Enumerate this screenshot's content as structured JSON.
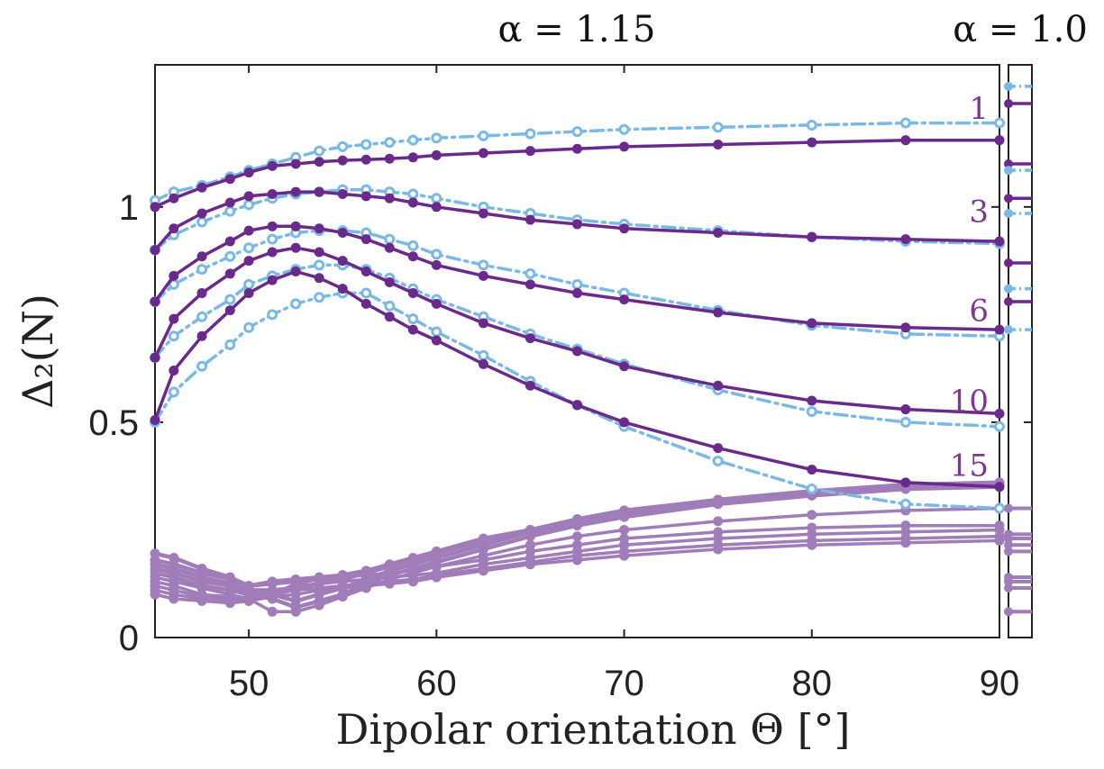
{
  "chart_data": {
    "type": "line",
    "xlabel": "Dipolar orientation Θ [°]",
    "ylabel": "Δ₂(N)",
    "xlim": [
      45,
      90
    ],
    "ylim": [
      0,
      1.33
    ],
    "xticks": [
      "50",
      "60",
      "70",
      "80",
      "90"
    ],
    "yticks": [
      "0",
      "0.5",
      "1"
    ],
    "panel_titles": [
      "α = 1.15",
      "α = 1.0"
    ],
    "n_labels": [
      {
        "text": "1",
        "y": 1.23
      },
      {
        "text": "3",
        "y": 0.99
      },
      {
        "text": "6",
        "y": 0.76
      },
      {
        "text": "10",
        "y": 0.55
      },
      {
        "text": "15",
        "y": 0.4
      }
    ],
    "colors": {
      "dark_purple": "#6a2a8c",
      "light_blue": "#7ab8e6",
      "light_purple": "#a07db8"
    },
    "x": [
      45,
      46,
      47.5,
      49,
      50,
      51.25,
      52.5,
      53.75,
      55,
      56.25,
      57.5,
      58.75,
      60,
      62.5,
      65,
      67.5,
      70,
      75,
      80,
      85,
      90
    ],
    "series": [
      {
        "label": "1",
        "style": "solid",
        "color": "dark_purple",
        "values": [
          1.0,
          1.02,
          1.045,
          1.065,
          1.08,
          1.095,
          1.1,
          1.105,
          1.108,
          1.11,
          1.112,
          1.115,
          1.12,
          1.125,
          1.13,
          1.135,
          1.14,
          1.145,
          1.15,
          1.155,
          1.155
        ]
      },
      {
        "label": "1",
        "style": "dashdot",
        "color": "light_blue",
        "values": [
          1.015,
          1.035,
          1.05,
          1.07,
          1.085,
          1.1,
          1.115,
          1.13,
          1.14,
          1.145,
          1.15,
          1.155,
          1.16,
          1.165,
          1.17,
          1.175,
          1.18,
          1.185,
          1.19,
          1.195,
          1.195
        ]
      },
      {
        "label": "3",
        "style": "solid",
        "color": "dark_purple",
        "values": [
          0.9,
          0.95,
          0.985,
          1.01,
          1.025,
          1.03,
          1.035,
          1.035,
          1.03,
          1.025,
          1.02,
          1.01,
          1.0,
          0.985,
          0.97,
          0.96,
          0.95,
          0.94,
          0.93,
          0.925,
          0.92
        ]
      },
      {
        "label": "3",
        "style": "dashdot",
        "color": "light_blue",
        "values": [
          0.9,
          0.935,
          0.965,
          0.99,
          1.005,
          1.02,
          1.03,
          1.035,
          1.04,
          1.04,
          1.035,
          1.03,
          1.02,
          1.0,
          0.985,
          0.97,
          0.96,
          0.945,
          0.93,
          0.92,
          0.915
        ]
      },
      {
        "label": "6",
        "style": "solid",
        "color": "dark_purple",
        "values": [
          0.78,
          0.84,
          0.885,
          0.92,
          0.945,
          0.955,
          0.955,
          0.95,
          0.94,
          0.925,
          0.905,
          0.885,
          0.865,
          0.84,
          0.82,
          0.8,
          0.785,
          0.755,
          0.73,
          0.72,
          0.715
        ]
      },
      {
        "label": "6",
        "style": "dashdot",
        "color": "light_blue",
        "values": [
          0.78,
          0.82,
          0.855,
          0.885,
          0.905,
          0.925,
          0.94,
          0.945,
          0.945,
          0.94,
          0.925,
          0.91,
          0.89,
          0.865,
          0.845,
          0.82,
          0.8,
          0.76,
          0.725,
          0.705,
          0.7
        ]
      },
      {
        "label": "10",
        "style": "solid",
        "color": "dark_purple",
        "values": [
          0.65,
          0.74,
          0.8,
          0.845,
          0.875,
          0.895,
          0.905,
          0.895,
          0.875,
          0.85,
          0.825,
          0.8,
          0.775,
          0.73,
          0.695,
          0.665,
          0.63,
          0.585,
          0.55,
          0.53,
          0.52
        ]
      },
      {
        "label": "10",
        "style": "dashdot",
        "color": "light_blue",
        "values": [
          0.65,
          0.7,
          0.745,
          0.785,
          0.82,
          0.84,
          0.855,
          0.865,
          0.865,
          0.855,
          0.835,
          0.81,
          0.785,
          0.745,
          0.705,
          0.67,
          0.635,
          0.575,
          0.525,
          0.5,
          0.49
        ]
      },
      {
        "label": "15",
        "style": "solid",
        "color": "dark_purple",
        "values": [
          0.505,
          0.62,
          0.7,
          0.76,
          0.8,
          0.83,
          0.85,
          0.835,
          0.81,
          0.775,
          0.745,
          0.715,
          0.69,
          0.635,
          0.585,
          0.54,
          0.5,
          0.44,
          0.39,
          0.36,
          0.35
        ]
      },
      {
        "label": "15",
        "style": "dashdot",
        "color": "light_blue",
        "values": [
          0.5,
          0.57,
          0.63,
          0.68,
          0.72,
          0.75,
          0.775,
          0.79,
          0.8,
          0.8,
          0.77,
          0.74,
          0.71,
          0.655,
          0.595,
          0.54,
          0.49,
          0.41,
          0.345,
          0.31,
          0.3
        ]
      },
      {
        "style": "solid-thick",
        "color": "light_purple",
        "values": [
          0.195,
          0.185,
          0.16,
          0.14,
          0.12,
          0.13,
          0.135,
          0.14,
          0.145,
          0.155,
          0.165,
          0.18,
          0.195,
          0.225,
          0.245,
          0.265,
          0.285,
          0.31,
          0.33,
          0.345,
          0.355
        ]
      },
      {
        "style": "solid-thick",
        "color": "light_purple",
        "values": [
          0.18,
          0.17,
          0.15,
          0.135,
          0.12,
          0.125,
          0.13,
          0.135,
          0.145,
          0.155,
          0.17,
          0.185,
          0.2,
          0.23,
          0.25,
          0.27,
          0.29,
          0.315,
          0.335,
          0.35,
          0.36
        ]
      },
      {
        "style": "solid-thick",
        "color": "light_purple",
        "values": [
          0.17,
          0.16,
          0.14,
          0.125,
          0.11,
          0.11,
          0.115,
          0.125,
          0.135,
          0.15,
          0.165,
          0.18,
          0.195,
          0.225,
          0.25,
          0.275,
          0.295,
          0.32,
          0.34,
          0.355,
          0.36
        ]
      },
      {
        "style": "solid-thick",
        "color": "light_purple",
        "values": [
          0.16,
          0.15,
          0.13,
          0.12,
          0.105,
          0.1,
          0.085,
          0.1,
          0.115,
          0.135,
          0.155,
          0.17,
          0.185,
          0.215,
          0.245,
          0.27,
          0.29,
          0.32,
          0.34,
          0.35,
          0.355
        ]
      },
      {
        "style": "solid-thick",
        "color": "light_purple",
        "values": [
          0.15,
          0.14,
          0.12,
          0.11,
          0.1,
          0.09,
          0.07,
          0.085,
          0.1,
          0.125,
          0.145,
          0.16,
          0.175,
          0.205,
          0.235,
          0.26,
          0.28,
          0.31,
          0.33,
          0.345,
          0.35
        ]
      },
      {
        "style": "solid",
        "color": "light_purple",
        "values": [
          0.14,
          0.13,
          0.115,
          0.1,
          0.09,
          0.06,
          0.06,
          0.075,
          0.095,
          0.115,
          0.135,
          0.15,
          0.165,
          0.19,
          0.215,
          0.235,
          0.25,
          0.27,
          0.285,
          0.295,
          0.3
        ]
      },
      {
        "style": "solid",
        "color": "light_purple",
        "values": [
          0.13,
          0.12,
          0.1,
          0.095,
          0.085,
          0.1,
          0.125,
          0.135,
          0.14,
          0.145,
          0.15,
          0.155,
          0.165,
          0.18,
          0.2,
          0.215,
          0.23,
          0.245,
          0.255,
          0.26,
          0.26
        ]
      },
      {
        "style": "solid",
        "color": "light_purple",
        "values": [
          0.12,
          0.11,
          0.095,
          0.09,
          0.09,
          0.105,
          0.12,
          0.125,
          0.13,
          0.135,
          0.14,
          0.145,
          0.15,
          0.17,
          0.185,
          0.2,
          0.215,
          0.23,
          0.24,
          0.245,
          0.25
        ]
      },
      {
        "style": "solid",
        "color": "light_purple",
        "values": [
          0.11,
          0.1,
          0.09,
          0.085,
          0.09,
          0.1,
          0.11,
          0.115,
          0.12,
          0.125,
          0.13,
          0.135,
          0.145,
          0.16,
          0.175,
          0.19,
          0.2,
          0.215,
          0.225,
          0.23,
          0.235
        ]
      },
      {
        "style": "solid",
        "color": "light_purple",
        "values": [
          0.1,
          0.09,
          0.085,
          0.08,
          0.085,
          0.095,
          0.1,
          0.11,
          0.115,
          0.12,
          0.125,
          0.13,
          0.14,
          0.155,
          0.17,
          0.18,
          0.19,
          0.205,
          0.215,
          0.22,
          0.225
        ]
      }
    ],
    "side_panel": {
      "label": "α = 1.0",
      "levels": [
        {
          "y": 1.28,
          "style": "dashdot",
          "color": "light_blue"
        },
        {
          "y": 1.24,
          "style": "solid",
          "color": "dark_purple"
        },
        {
          "y": 1.1,
          "style": "solid",
          "color": "dark_purple"
        },
        {
          "y": 1.085,
          "style": "dashdot",
          "color": "light_blue"
        },
        {
          "y": 1.02,
          "style": "solid",
          "color": "dark_purple"
        },
        {
          "y": 0.985,
          "style": "dashdot",
          "color": "light_blue"
        },
        {
          "y": 0.87,
          "style": "solid",
          "color": "dark_purple"
        },
        {
          "y": 0.81,
          "style": "dashdot",
          "color": "light_blue"
        },
        {
          "y": 0.78,
          "style": "solid",
          "color": "dark_purple"
        },
        {
          "y": 0.715,
          "style": "dashdot",
          "color": "light_blue"
        },
        {
          "y": 0.3,
          "style": "solid",
          "color": "light_purple"
        },
        {
          "y": 0.24,
          "style": "solid",
          "color": "light_purple"
        },
        {
          "y": 0.23,
          "style": "solid",
          "color": "light_purple"
        },
        {
          "y": 0.215,
          "style": "solid",
          "color": "light_purple"
        },
        {
          "y": 0.2,
          "style": "solid",
          "color": "light_purple"
        },
        {
          "y": 0.14,
          "style": "solid",
          "color": "light_purple"
        },
        {
          "y": 0.13,
          "style": "solid",
          "color": "light_purple"
        },
        {
          "y": 0.115,
          "style": "solid",
          "color": "light_purple"
        },
        {
          "y": 0.06,
          "style": "solid",
          "color": "light_purple"
        }
      ]
    }
  }
}
